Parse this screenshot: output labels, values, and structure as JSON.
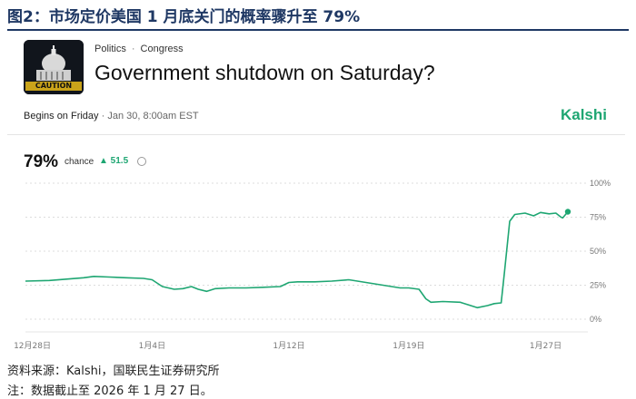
{
  "figure": {
    "title": "图2：市场定价美国 1 月底关门的概率骤升至 79%",
    "source": "资料来源：Kalshi，国联民生证券研究所",
    "note": "注：数据截止至 2026 年 1 月 27 日。"
  },
  "market": {
    "thumbnail_text": "CAUTION",
    "category": "Politics",
    "subcategory": "Congress",
    "question": "Government shutdown on Saturday?",
    "begins_label": "Begins on Friday",
    "begins_date": "Jan 30, 8:00am EST",
    "brand": "Kalshi",
    "probability": "79%",
    "chance_label": "chance",
    "delta": "▲ 51.5"
  },
  "colors": {
    "accent": "#1ea672",
    "title": "#1f3864",
    "grid": "#dcdcdc"
  },
  "chart_data": {
    "type": "line",
    "x_ticks": [
      "12月28日",
      "1月4日",
      "1月12日",
      "1月19日",
      "1月27日"
    ],
    "x_tick_days": [
      0,
      7,
      15,
      22,
      30
    ],
    "x_range_days": [
      -0.4,
      31.3
    ],
    "y_ticks": [
      "100%",
      "75%",
      "50%",
      "25%",
      "0%"
    ],
    "y_tick_values": [
      100,
      75,
      50,
      25,
      0
    ],
    "ylim": [
      0,
      100
    ],
    "grid": true,
    "series": [
      {
        "points": [
          [
            -0.4,
            28
          ],
          [
            1,
            28.5
          ],
          [
            2,
            29.5
          ],
          [
            3,
            30.5
          ],
          [
            3.6,
            31.5
          ],
          [
            4.5,
            31
          ],
          [
            5.5,
            30.5
          ],
          [
            6.5,
            30
          ],
          [
            7,
            29
          ],
          [
            7.6,
            24
          ],
          [
            8.3,
            22
          ],
          [
            8.8,
            22.5
          ],
          [
            9.3,
            24
          ],
          [
            9.7,
            22
          ],
          [
            10.2,
            20.5
          ],
          [
            10.7,
            22.5
          ],
          [
            11.5,
            23
          ],
          [
            12.5,
            23
          ],
          [
            13.5,
            23.5
          ],
          [
            14.5,
            24
          ],
          [
            15,
            27
          ],
          [
            15.5,
            27.5
          ],
          [
            16.5,
            27.5
          ],
          [
            17.5,
            28
          ],
          [
            18.5,
            29
          ],
          [
            19,
            28
          ],
          [
            19.5,
            27
          ],
          [
            20.5,
            25
          ],
          [
            21.5,
            23
          ],
          [
            22,
            23
          ],
          [
            22.6,
            22
          ],
          [
            23,
            15
          ],
          [
            23.3,
            12.5
          ],
          [
            24,
            13
          ],
          [
            25,
            12.5
          ],
          [
            25.5,
            10.5
          ],
          [
            26,
            8.5
          ],
          [
            26.6,
            10
          ],
          [
            27,
            11.5
          ],
          [
            27.4,
            12
          ],
          [
            27.6,
            35
          ],
          [
            27.9,
            72
          ],
          [
            28.2,
            77
          ],
          [
            28.8,
            78
          ],
          [
            29.3,
            76
          ],
          [
            29.7,
            78.5
          ],
          [
            30.2,
            77.5
          ],
          [
            30.6,
            78
          ],
          [
            30.9,
            75
          ],
          [
            31.0,
            74.5
          ],
          [
            31.2,
            77.5
          ],
          [
            31.3,
            79
          ]
        ]
      }
    ]
  }
}
